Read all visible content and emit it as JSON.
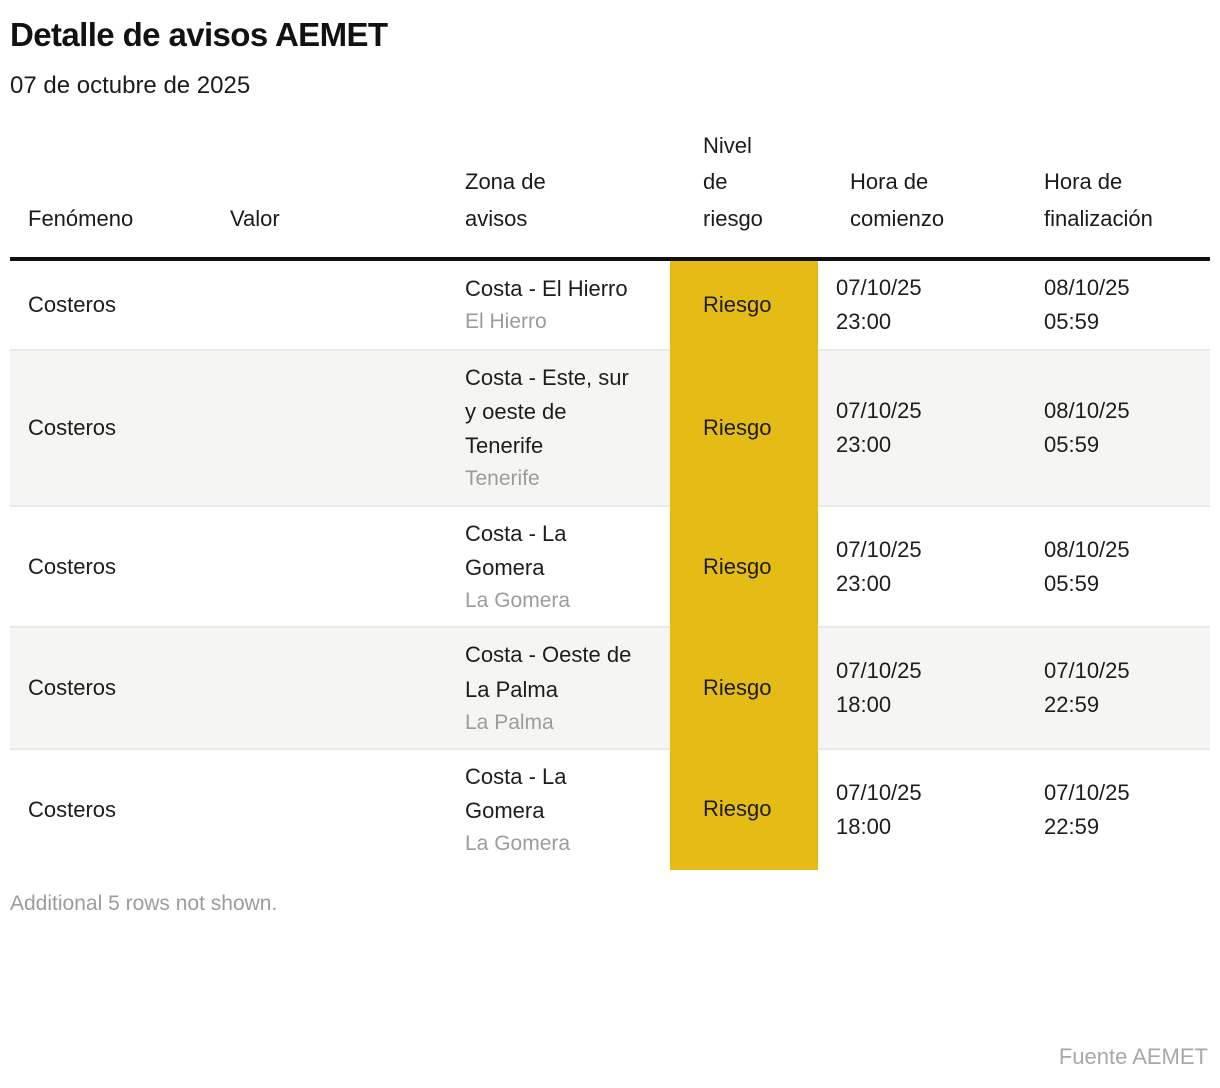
{
  "header": {
    "title": "Detalle de avisos AEMET",
    "subtitle": "07 de octubre de 2025"
  },
  "chart_data": {
    "type": "table",
    "title": "Detalle de avisos AEMET",
    "subtitle": "07 de octubre de 2025",
    "columns": [
      "Fenómeno",
      "Valor",
      "Zona de avisos",
      "Nivel de riesgo",
      "Hora de comienzo",
      "Hora de finalización"
    ],
    "rows": [
      {
        "fenomeno": "Costeros",
        "valor": "",
        "zona": "Costa - El Hierro",
        "zona_region": "El Hierro",
        "nivel": "Riesgo",
        "comienzo_fecha": "07/10/25",
        "comienzo_hora": "23:00",
        "fin_fecha": "08/10/25",
        "fin_hora": "05:59"
      },
      {
        "fenomeno": "Costeros",
        "valor": "",
        "zona": "Costa - Este, sur y oeste de Tenerife",
        "zona_region": "Tenerife",
        "nivel": "Riesgo",
        "comienzo_fecha": "07/10/25",
        "comienzo_hora": "23:00",
        "fin_fecha": "08/10/25",
        "fin_hora": "05:59"
      },
      {
        "fenomeno": "Costeros",
        "valor": "",
        "zona": "Costa - La Gomera",
        "zona_region": "La Gomera",
        "nivel": "Riesgo",
        "comienzo_fecha": "07/10/25",
        "comienzo_hora": "23:00",
        "fin_fecha": "08/10/25",
        "fin_hora": "05:59"
      },
      {
        "fenomeno": "Costeros",
        "valor": "",
        "zona": "Costa - Oeste de La Palma",
        "zona_region": "La Palma",
        "nivel": "Riesgo",
        "comienzo_fecha": "07/10/25",
        "comienzo_hora": "18:00",
        "fin_fecha": "07/10/25",
        "fin_hora": "22:59"
      },
      {
        "fenomeno": "Costeros",
        "valor": "",
        "zona": "Costa - La Gomera",
        "zona_region": "La Gomera",
        "nivel": "Riesgo",
        "comienzo_fecha": "07/10/25",
        "comienzo_hora": "18:00",
        "fin_fecha": "07/10/25",
        "fin_hora": "22:59"
      }
    ],
    "note": "Additional 5 rows not shown.",
    "source": "Fuente AEMET"
  },
  "colors": {
    "risk_yellow": "#e4bc15",
    "stripe_gray": "#f5f5f3",
    "rule_black": "#111111",
    "muted_gray": "#9c9c9c"
  }
}
